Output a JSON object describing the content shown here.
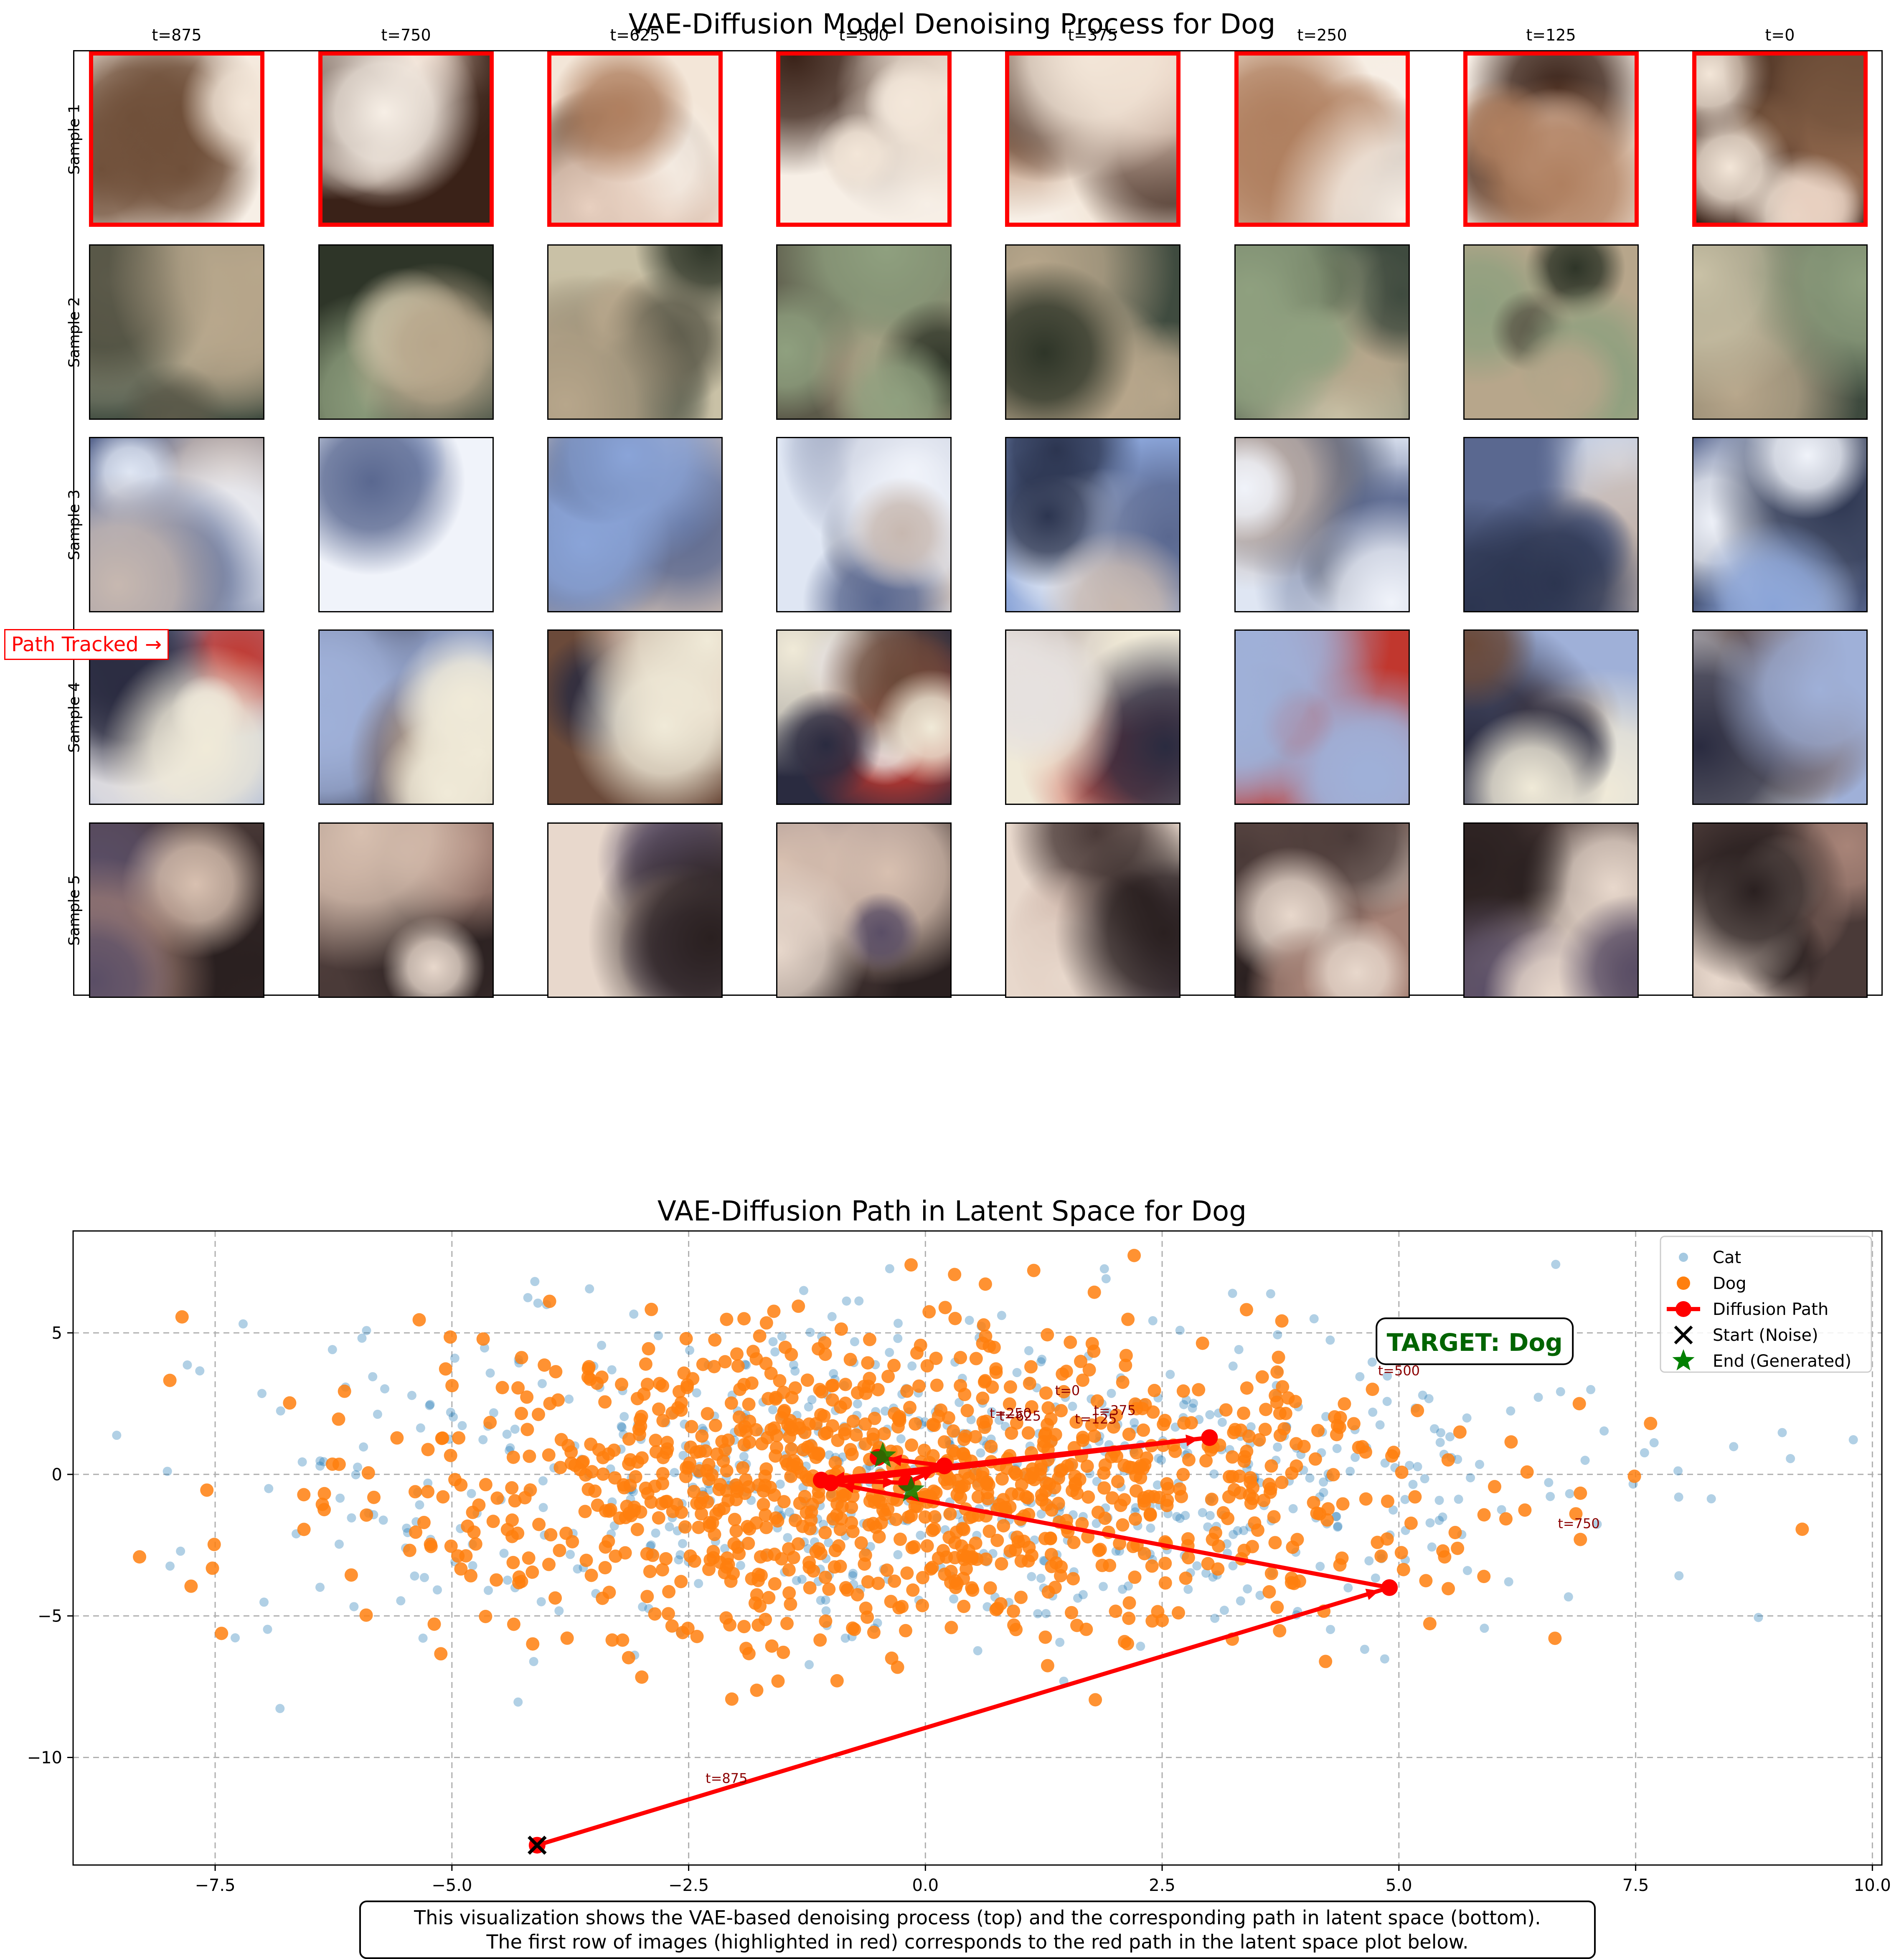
{
  "top_panel": {
    "title": "VAE-Diffusion Model Denoising Process for Dog",
    "column_labels": [
      "t=875",
      "t=750",
      "t=625",
      "t=500",
      "t=375",
      "t=250",
      "t=125",
      "t=0"
    ],
    "row_labels": [
      "Sample 1",
      "Sample 2",
      "Sample 3",
      "Sample 4",
      "Sample 5"
    ],
    "highlighted_row": "Sample 1",
    "path_tracked_label": "Path Tracked →",
    "highlight_color": "#ff0000"
  },
  "caption": {
    "line1": "This visualization shows the VAE-based denoising process (top) and the corresponding path in latent space (bottom).",
    "line2": "The first row of images (highlighted in red) corresponds to the red path in the latent space plot below."
  },
  "chart_data": {
    "type": "scatter",
    "title": "VAE-Diffusion Path in Latent Space for Dog",
    "xlabel": "",
    "ylabel": "",
    "xlim": [
      -9.0,
      10.1
    ],
    "ylim": [
      -13.8,
      8.6
    ],
    "xticks": [
      -7.5,
      -5.0,
      -2.5,
      0.0,
      2.5,
      5.0,
      7.5,
      10.0
    ],
    "xtick_labels": [
      "−7.5",
      "−5.0",
      "−2.5",
      "0.0",
      "2.5",
      "5.0",
      "7.5",
      "10.0"
    ],
    "yticks": [
      5,
      0,
      -5,
      -10
    ],
    "ytick_labels": [
      "5",
      "0",
      "−5",
      "−10"
    ],
    "grid": true,
    "legend_position": "top-right",
    "legend": [
      "Cat",
      "Dog",
      "Diffusion Path",
      "Start (Noise)",
      "End (Generated)"
    ],
    "colors": {
      "cat": "#1f77b4",
      "dog": "#ff7f0e",
      "path": "#ff0000",
      "start": "#000000",
      "end": "#008000",
      "target_text": "#006400",
      "step_label": "#8b0000"
    },
    "scatter_clouds": [
      {
        "name": "Cat",
        "count": 700,
        "mean": [
          0.0,
          0.0
        ],
        "std": [
          3.6,
          2.9
        ],
        "opacity": 0.35
      },
      {
        "name": "Dog",
        "count": 1100,
        "mean": [
          -0.3,
          -0.4
        ],
        "std": [
          2.7,
          2.6
        ],
        "opacity": 0.85
      }
    ],
    "series": [
      {
        "name": "Diffusion Path",
        "points": [
          {
            "t": "t=875",
            "x": -4.1,
            "y": -13.1
          },
          {
            "t": "t=750",
            "x": 4.9,
            "y": -4.0
          },
          {
            "t": "t=625",
            "x": -1.0,
            "y": -0.3
          },
          {
            "t": "t=500",
            "x": 3.0,
            "y": 1.3
          },
          {
            "t": "t=375",
            "x": -1.1,
            "y": -0.2
          },
          {
            "t": "t=250",
            "x": -0.2,
            "y": -0.3
          },
          {
            "t": "t=125",
            "x": 0.2,
            "y": 0.3
          },
          {
            "t": "t=0",
            "x": -0.5,
            "y": 0.6
          }
        ]
      }
    ],
    "start_point": {
      "x": -4.1,
      "y": -13.1
    },
    "end_points": [
      {
        "x": -0.45,
        "y": 0.65
      },
      {
        "x": -0.15,
        "y": -0.55
      }
    ],
    "step_labels": [
      {
        "text": "t=875",
        "x": -2.1,
        "y": -10.9
      },
      {
        "text": "t=750",
        "x": 6.9,
        "y": -1.9
      },
      {
        "text": "t=625",
        "x": 1.0,
        "y": 1.9
      },
      {
        "text": "t=500",
        "x": 5.0,
        "y": 3.5
      },
      {
        "text": "t=375",
        "x": 2.0,
        "y": 2.1
      },
      {
        "text": "t=250",
        "x": 0.9,
        "y": 2.0
      },
      {
        "text": "t=125",
        "x": 1.8,
        "y": 1.8
      },
      {
        "text": "t=0",
        "x": 1.5,
        "y": 2.8
      }
    ],
    "annotation": {
      "text": "TARGET: Dog",
      "x": 5.8,
      "y": 4.6
    }
  }
}
